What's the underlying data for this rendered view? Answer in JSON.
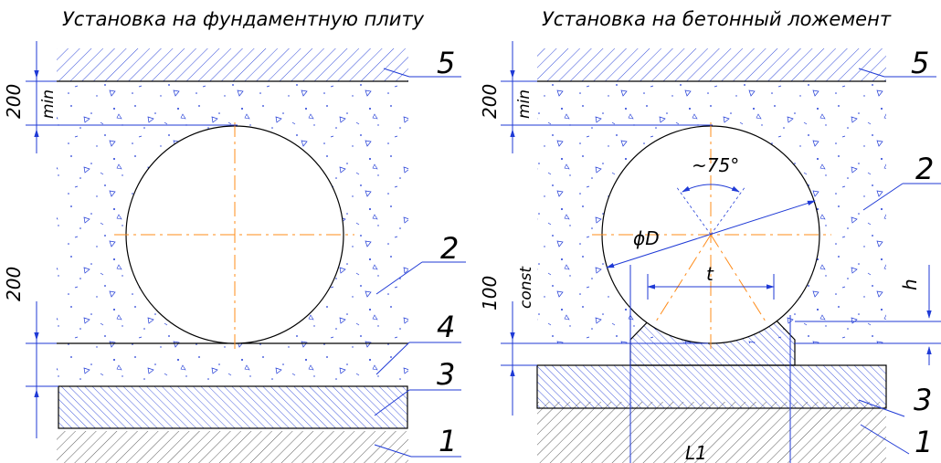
{
  "left_panel": {
    "title": "Установка на фундаментную плиту",
    "dims": {
      "top_value": "200",
      "top_note": "min",
      "mid_value": "200"
    },
    "callouts": [
      "5",
      "2",
      "4",
      "3",
      "1"
    ]
  },
  "right_panel": {
    "title": "Установка на бетонный ложемент",
    "dims": {
      "top_value": "200",
      "top_note": "min",
      "mid_value": "100",
      "mid_note": "const",
      "angle": "~75°",
      "diameter": "ϕD",
      "chord": "t",
      "height": "h",
      "length": "L1"
    },
    "callouts": [
      "5",
      "2",
      "3",
      "1"
    ]
  },
  "colors": {
    "lines": "#1f3ad6",
    "axis": "#ff8c1a",
    "outline": "#000000"
  }
}
